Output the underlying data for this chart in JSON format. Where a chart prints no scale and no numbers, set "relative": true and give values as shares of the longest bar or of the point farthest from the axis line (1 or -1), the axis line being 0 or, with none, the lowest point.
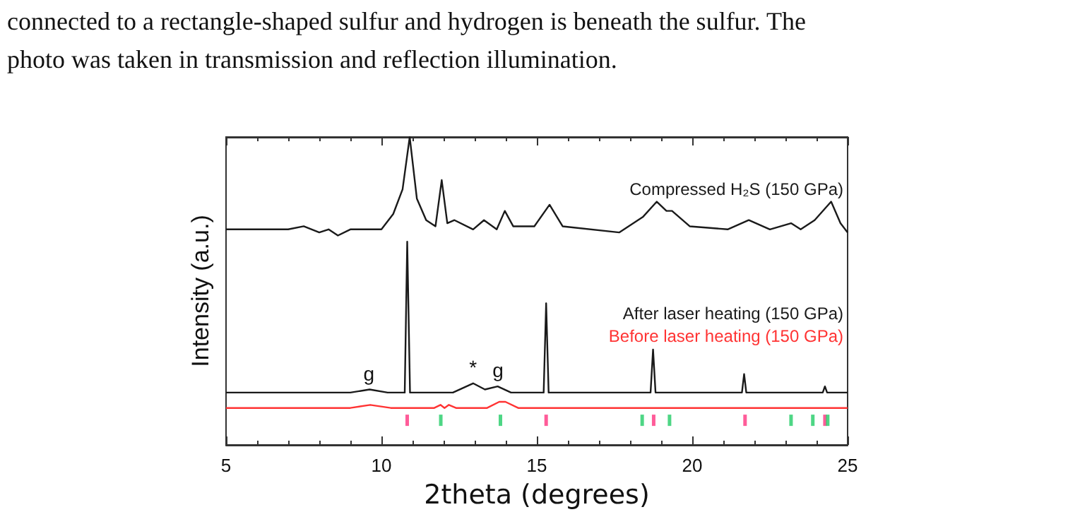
{
  "chart_data": {
    "type": "line",
    "relative": true,
    "annotations": [
      "connected to a rectangle-shaped sulfur and hydrogen is beneath the sulfur. The",
      "photo was taken in transmission and reflection illumination.",
      {
        "text": "g",
        "x": 9.6,
        "y": 0.2
      },
      {
        "text": "*",
        "x": 12.95,
        "y": 0.22
      },
      {
        "text": "g",
        "x": 13.75,
        "y": 0.21
      }
    ],
    "xlabel": "2theta (degrees)",
    "ylabel": "Intensity (a.u.)",
    "xlim": [
      5,
      25
    ],
    "xticks": [
      5,
      10,
      15,
      20,
      25
    ],
    "grid": false,
    "legend": false,
    "marker": "none",
    "series": [
      {
        "name": "Compressed H₂S (150 GPa)",
        "color": "#1a1a1a",
        "x": [
          5.0,
          6.0,
          7.0,
          7.5,
          8.0,
          8.3,
          8.6,
          9.0,
          9.5,
          10.0,
          10.38,
          10.68,
          10.91,
          11.14,
          11.44,
          11.74,
          11.94,
          12.12,
          12.35,
          12.95,
          13.3,
          13.71,
          13.97,
          14.24,
          14.92,
          15.41,
          15.83,
          17.65,
          18.41,
          18.86,
          19.17,
          19.35,
          19.92,
          21.14,
          21.82,
          22.5,
          23.18,
          23.49,
          23.94,
          24.47,
          24.77,
          25.0
        ],
        "values": [
          0.7,
          0.7,
          0.7,
          0.71,
          0.69,
          0.7,
          0.68,
          0.7,
          0.7,
          0.7,
          0.75,
          0.83,
          1.0,
          0.8,
          0.73,
          0.71,
          0.86,
          0.72,
          0.73,
          0.7,
          0.73,
          0.7,
          0.76,
          0.71,
          0.71,
          0.78,
          0.71,
          0.69,
          0.74,
          0.79,
          0.76,
          0.76,
          0.71,
          0.7,
          0.73,
          0.7,
          0.72,
          0.7,
          0.73,
          0.79,
          0.72,
          0.69
        ]
      },
      {
        "name": "After laser heating (150 GPa)",
        "color": "#1a1a1a",
        "x": [
          5.0,
          9.0,
          9.62,
          10.2,
          10.75,
          10.83,
          10.92,
          12.3,
          12.95,
          13.33,
          13.74,
          14.17,
          15.22,
          15.3,
          15.38,
          18.66,
          18.74,
          18.82,
          21.6,
          21.67,
          21.74,
          24.2,
          24.27,
          24.34,
          25.0
        ],
        "values": [
          0.17,
          0.17,
          0.18,
          0.17,
          0.17,
          0.66,
          0.17,
          0.17,
          0.2,
          0.18,
          0.19,
          0.17,
          0.17,
          0.46,
          0.17,
          0.17,
          0.31,
          0.17,
          0.17,
          0.23,
          0.17,
          0.17,
          0.19,
          0.17,
          0.17
        ]
      },
      {
        "name": "Before laser heating (150 GPa)",
        "color": "#ff3333",
        "x": [
          5.0,
          9.0,
          9.64,
          10.3,
          11.7,
          11.9,
          12.03,
          12.17,
          12.4,
          13.4,
          13.79,
          13.99,
          14.4,
          25.0
        ],
        "values": [
          0.12,
          0.12,
          0.13,
          0.12,
          0.12,
          0.13,
          0.12,
          0.13,
          0.12,
          0.12,
          0.14,
          0.14,
          0.12,
          0.12
        ]
      },
      {
        "type": "scatter",
        "marker": "square",
        "color": "#ff3380",
        "x": [
          10.83,
          15.3,
          18.76,
          21.7,
          24.27
        ],
        "values": [
          0.08,
          0.08,
          0.08,
          0.08,
          0.08
        ]
      },
      {
        "type": "scatter",
        "marker": "square",
        "color": "#22cc66",
        "x": [
          11.91,
          13.83,
          18.39,
          19.27,
          23.18,
          23.88,
          24.36
        ],
        "values": [
          0.08,
          0.08,
          0.08,
          0.08,
          0.08,
          0.08,
          0.08
        ]
      }
    ]
  }
}
